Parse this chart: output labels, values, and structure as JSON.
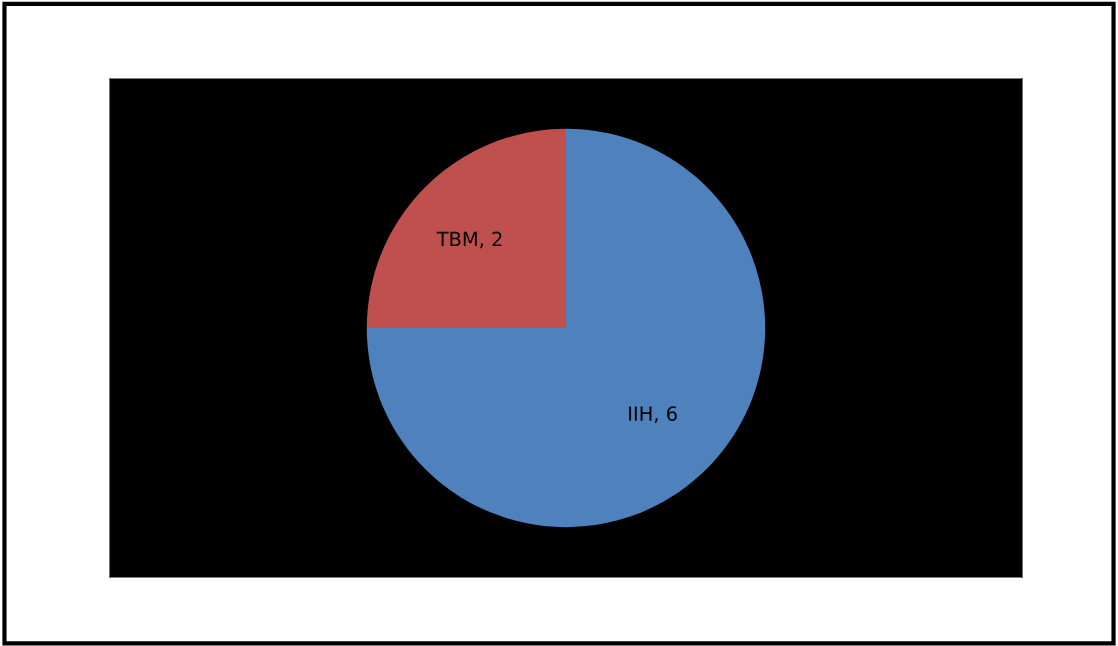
{
  "chart_data": {
    "type": "pie",
    "categories": [
      "IIH",
      "TBM"
    ],
    "values": [
      6,
      2
    ],
    "colors": [
      "#4f81bd",
      "#c0504d"
    ],
    "value_labels": [
      ", 6",
      ", 2"
    ],
    "legend": false
  }
}
